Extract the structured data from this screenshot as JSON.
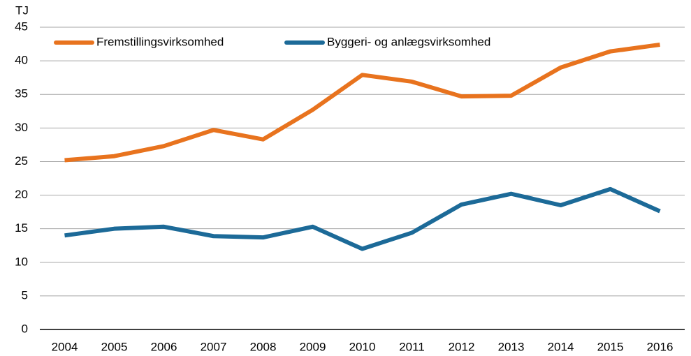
{
  "chart_data": {
    "type": "line",
    "y_axis_label": "TJ",
    "categories": [
      "2004",
      "2005",
      "2006",
      "2007",
      "2008",
      "2009",
      "2010",
      "2011",
      "2012",
      "2013",
      "2014",
      "2015",
      "2016"
    ],
    "series": [
      {
        "name": "Fremstillingsvirksomhed",
        "color": "#e8731e",
        "values": [
          25.2,
          25.8,
          27.3,
          29.7,
          28.3,
          32.7,
          37.9,
          36.9,
          34.7,
          34.8,
          39.0,
          41.4,
          42.4
        ]
      },
      {
        "name": "Byggeri- og anlægsvirksomhed",
        "color": "#1c6a98",
        "values": [
          14.0,
          15.0,
          15.3,
          13.9,
          13.7,
          15.3,
          12.0,
          14.4,
          18.6,
          20.2,
          18.5,
          20.9,
          17.6
        ]
      }
    ],
    "ylim": [
      0,
      45
    ],
    "yticks": [
      0,
      5,
      10,
      15,
      20,
      25,
      30,
      35,
      40,
      45
    ],
    "grid": true,
    "legend": "top-left"
  }
}
